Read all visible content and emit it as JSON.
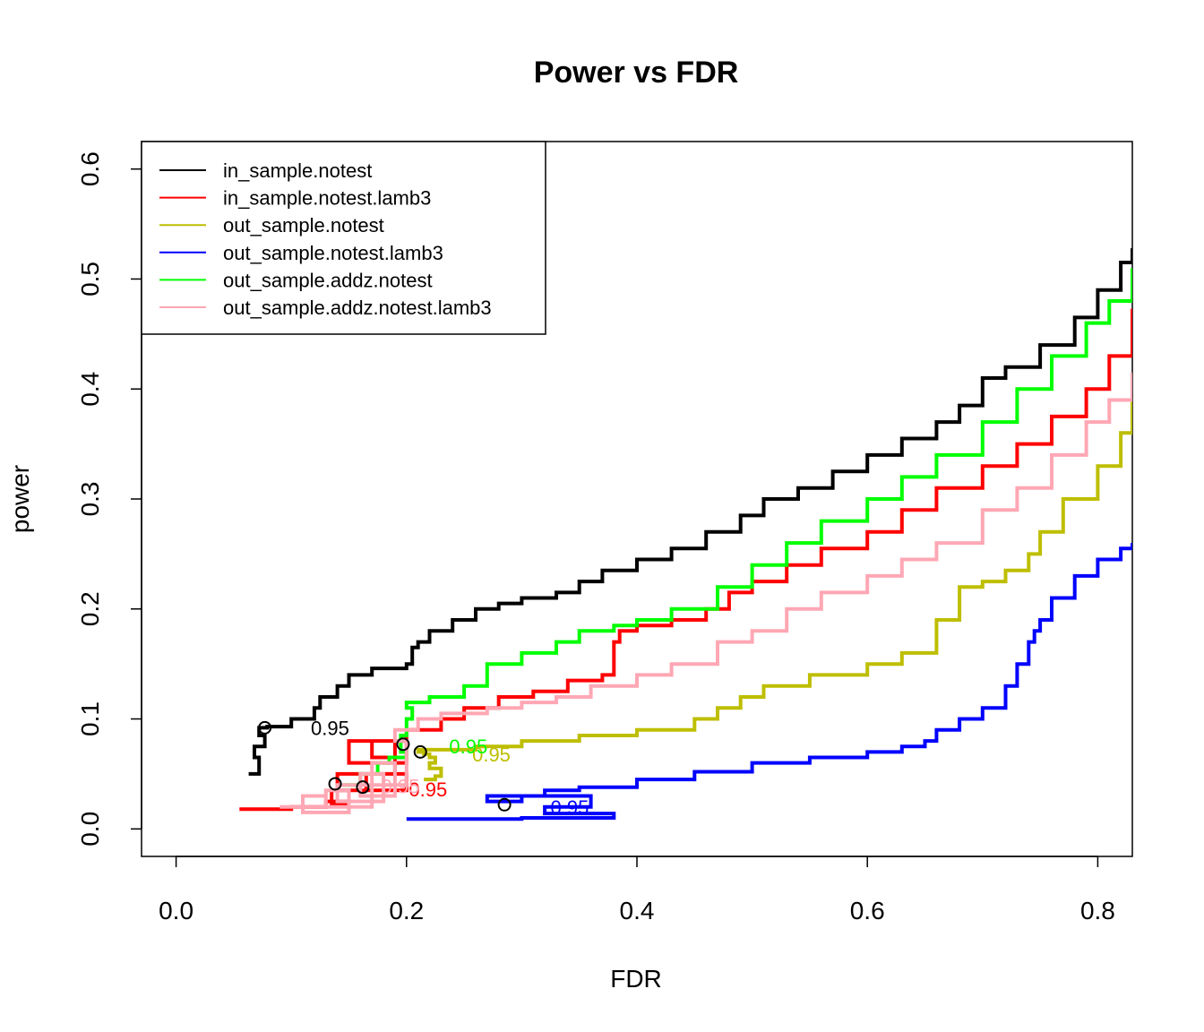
{
  "chart_data": {
    "type": "line",
    "title": "Power vs FDR",
    "xlabel": "FDR",
    "ylabel": "power",
    "xlim": [
      -0.03,
      0.83
    ],
    "ylim": [
      -0.025,
      0.625
    ],
    "x_ticks": [
      0.0,
      0.2,
      0.4,
      0.6,
      0.8
    ],
    "x_tick_labels": [
      "0.0",
      "0.2",
      "0.4",
      "0.6",
      "0.8"
    ],
    "y_ticks": [
      0.0,
      0.1,
      0.2,
      0.3,
      0.4,
      0.5,
      0.6
    ],
    "y_tick_labels": [
      "0.0",
      "0.1",
      "0.2",
      "0.3",
      "0.4",
      "0.5",
      "0.6"
    ],
    "legend_position": "top-left",
    "series": [
      {
        "name": "in_sample.notest",
        "color": "#000000",
        "x": [
          0.063,
          0.072,
          0.068,
          0.077,
          0.072,
          0.079,
          0.083,
          0.1,
          0.12,
          0.125,
          0.14,
          0.15,
          0.17,
          0.2,
          0.205,
          0.21,
          0.22,
          0.24,
          0.26,
          0.28,
          0.3,
          0.33,
          0.35,
          0.37,
          0.4,
          0.43,
          0.46,
          0.49,
          0.51,
          0.54,
          0.57,
          0.6,
          0.63,
          0.66,
          0.68,
          0.7,
          0.72,
          0.75,
          0.78,
          0.8,
          0.82,
          0.83
        ],
        "y": [
          0.05,
          0.065,
          0.075,
          0.085,
          0.092,
          0.093,
          0.093,
          0.1,
          0.11,
          0.12,
          0.13,
          0.14,
          0.146,
          0.15,
          0.165,
          0.17,
          0.18,
          0.19,
          0.2,
          0.205,
          0.21,
          0.215,
          0.225,
          0.235,
          0.245,
          0.255,
          0.27,
          0.285,
          0.3,
          0.31,
          0.325,
          0.34,
          0.355,
          0.37,
          0.385,
          0.41,
          0.42,
          0.44,
          0.465,
          0.49,
          0.515,
          0.528
        ]
      },
      {
        "name": "in_sample.notest.lamb3",
        "color": "#ff0000",
        "x": [
          0.055,
          0.1,
          0.13,
          0.15,
          0.135,
          0.165,
          0.2,
          0.14,
          0.19,
          0.15,
          0.2,
          0.17,
          0.2,
          0.23,
          0.25,
          0.28,
          0.31,
          0.34,
          0.37,
          0.38,
          0.385,
          0.4,
          0.43,
          0.46,
          0.48,
          0.5,
          0.53,
          0.56,
          0.6,
          0.63,
          0.66,
          0.7,
          0.73,
          0.76,
          0.79,
          0.81,
          0.83
        ],
        "y": [
          0.018,
          0.02,
          0.025,
          0.022,
          0.035,
          0.05,
          0.035,
          0.05,
          0.08,
          0.06,
          0.08,
          0.065,
          0.09,
          0.1,
          0.11,
          0.12,
          0.125,
          0.135,
          0.14,
          0.17,
          0.18,
          0.185,
          0.19,
          0.2,
          0.215,
          0.225,
          0.24,
          0.255,
          0.27,
          0.29,
          0.31,
          0.33,
          0.35,
          0.375,
          0.4,
          0.43,
          0.473
        ]
      },
      {
        "name": "out_sample.notest",
        "color": "#bebe00",
        "x": [
          0.215,
          0.225,
          0.23,
          0.22,
          0.225,
          0.22,
          0.215,
          0.21,
          0.23,
          0.26,
          0.3,
          0.35,
          0.4,
          0.45,
          0.47,
          0.49,
          0.51,
          0.55,
          0.6,
          0.63,
          0.66,
          0.68,
          0.7,
          0.72,
          0.74,
          0.75,
          0.77,
          0.8,
          0.82,
          0.83
        ],
        "y": [
          0.045,
          0.048,
          0.055,
          0.06,
          0.065,
          0.068,
          0.07,
          0.072,
          0.072,
          0.075,
          0.08,
          0.085,
          0.09,
          0.1,
          0.11,
          0.12,
          0.13,
          0.14,
          0.15,
          0.16,
          0.19,
          0.22,
          0.225,
          0.235,
          0.25,
          0.27,
          0.3,
          0.33,
          0.36,
          0.39
        ]
      },
      {
        "name": "out_sample.notest.lamb3",
        "color": "#0000ff",
        "x": [
          0.2,
          0.3,
          0.37,
          0.38,
          0.32,
          0.36,
          0.27,
          0.3,
          0.32,
          0.35,
          0.4,
          0.45,
          0.5,
          0.55,
          0.6,
          0.63,
          0.65,
          0.66,
          0.68,
          0.7,
          0.72,
          0.73,
          0.74,
          0.745,
          0.75,
          0.76,
          0.78,
          0.8,
          0.82,
          0.83
        ],
        "y": [
          0.009,
          0.01,
          0.01,
          0.014,
          0.02,
          0.03,
          0.025,
          0.03,
          0.035,
          0.038,
          0.045,
          0.052,
          0.06,
          0.065,
          0.07,
          0.075,
          0.08,
          0.09,
          0.1,
          0.11,
          0.13,
          0.15,
          0.17,
          0.18,
          0.19,
          0.21,
          0.23,
          0.245,
          0.255,
          0.26
        ]
      },
      {
        "name": "out_sample.addz.notest",
        "color": "#00ff00",
        "x": [
          0.145,
          0.16,
          0.175,
          0.185,
          0.2,
          0.195,
          0.2,
          0.205,
          0.2,
          0.22,
          0.25,
          0.27,
          0.3,
          0.33,
          0.35,
          0.38,
          0.4,
          0.43,
          0.47,
          0.5,
          0.53,
          0.56,
          0.6,
          0.63,
          0.66,
          0.7,
          0.73,
          0.76,
          0.79,
          0.81,
          0.83
        ],
        "y": [
          0.04,
          0.05,
          0.06,
          0.065,
          0.07,
          0.085,
          0.1,
          0.11,
          0.115,
          0.12,
          0.13,
          0.15,
          0.16,
          0.17,
          0.18,
          0.185,
          0.19,
          0.2,
          0.22,
          0.24,
          0.26,
          0.28,
          0.3,
          0.32,
          0.34,
          0.37,
          0.4,
          0.43,
          0.46,
          0.48,
          0.51
        ]
      },
      {
        "name": "out_sample.addz.notest.lamb3",
        "color": "#ffa7b4",
        "x": [
          0.09,
          0.13,
          0.11,
          0.15,
          0.13,
          0.17,
          0.14,
          0.18,
          0.16,
          0.19,
          0.17,
          0.2,
          0.19,
          0.21,
          0.23,
          0.27,
          0.3,
          0.33,
          0.36,
          0.4,
          0.43,
          0.47,
          0.5,
          0.53,
          0.56,
          0.6,
          0.63,
          0.66,
          0.7,
          0.73,
          0.76,
          0.79,
          0.81,
          0.83
        ],
        "y": [
          0.02,
          0.03,
          0.015,
          0.035,
          0.02,
          0.04,
          0.025,
          0.05,
          0.03,
          0.06,
          0.04,
          0.08,
          0.09,
          0.1,
          0.105,
          0.11,
          0.115,
          0.12,
          0.13,
          0.14,
          0.15,
          0.17,
          0.18,
          0.2,
          0.215,
          0.23,
          0.245,
          0.26,
          0.29,
          0.31,
          0.34,
          0.37,
          0.39,
          0.415
        ]
      }
    ],
    "markers": [
      {
        "series": "in_sample.notest",
        "x": 0.077,
        "y": 0.092,
        "label": "0.95",
        "label_dx": 0.04,
        "label_dy": 0.0
      },
      {
        "series": "in_sample.notest.lamb3",
        "x": 0.162,
        "y": 0.038,
        "label": "0.95",
        "label_dx": 0.04,
        "label_dy": -0.002
      },
      {
        "series": "out_sample.notest",
        "x": 0.212,
        "y": 0.07,
        "label": "0.95",
        "label_dx": 0.045,
        "label_dy": -0.002
      },
      {
        "series": "out_sample.notest.lamb3",
        "x": 0.285,
        "y": 0.022,
        "label": "0.95",
        "label_dx": 0.04,
        "label_dy": -0.002
      },
      {
        "series": "out_sample.addz.notest",
        "x": 0.197,
        "y": 0.077,
        "label": "0.95",
        "label_dx": 0.04,
        "label_dy": -0.002
      },
      {
        "series": "out_sample.addz.notest.lamb3",
        "x": 0.138,
        "y": 0.041,
        "label": "0.95",
        "label_dx": 0.04,
        "label_dy": -0.002
      }
    ]
  }
}
